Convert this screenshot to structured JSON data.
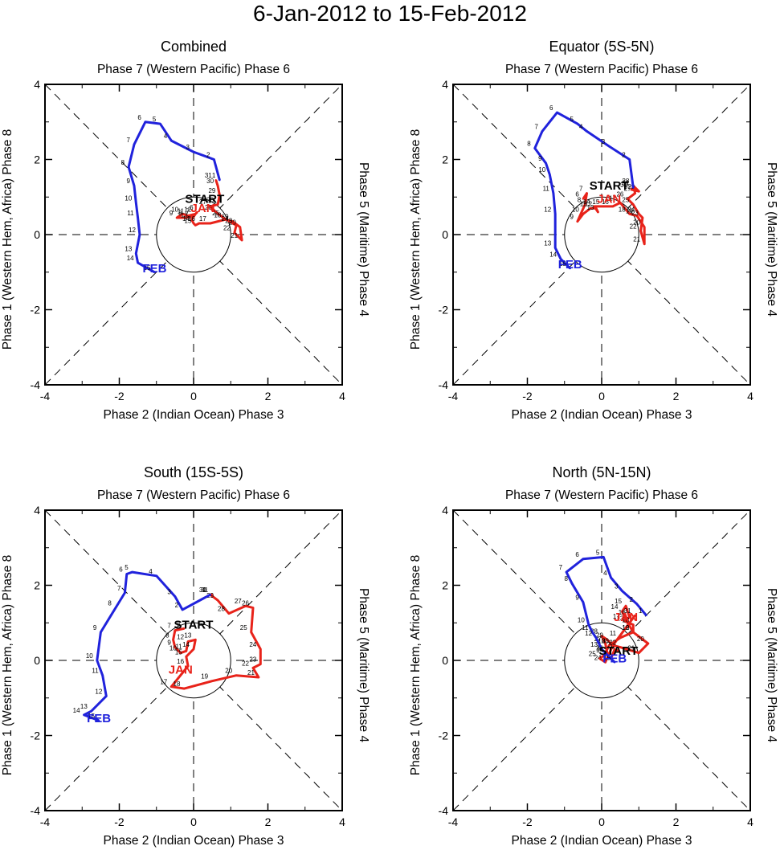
{
  "page": {
    "title": "6-Jan-2012 to 15-Feb-2012"
  },
  "colors": {
    "jan": "#e8231a",
    "feb": "#2022dc",
    "axis": "#000000"
  },
  "chart_data": [
    {
      "type": "line",
      "title": "Combined",
      "label_top": "Phase 7 (Western Pacific) Phase 6",
      "label_bottom": "Phase 2 (Indian Ocean) Phase 3",
      "label_left": "Phase 1 (Western Hem, Africa) Phase 8",
      "label_right": "Phase 5 (Maritime) Phase 4",
      "xlim": [
        -4,
        4
      ],
      "ylim": [
        -4,
        4
      ],
      "ticks": [
        "-4",
        "-2",
        "0",
        "2",
        "4"
      ],
      "start_label": "START",
      "start_at": [
        0.3,
        0.85
      ],
      "month_labels": [
        {
          "text": "JAN",
          "color": "jan",
          "x": 0.25,
          "y": 0.6
        },
        {
          "text": "FEB",
          "color": "feb",
          "x": -1.05,
          "y": -1.0
        }
      ],
      "series": [
        {
          "name": "JAN",
          "color": "jan",
          "days": [
            6,
            7,
            8,
            9,
            10,
            11,
            12,
            13,
            14,
            15,
            16,
            17,
            18,
            19,
            20,
            21,
            22,
            23,
            24,
            25,
            26,
            27,
            28,
            29,
            30,
            31
          ],
          "points": [
            [
              0.1,
              0.6
            ],
            [
              0.0,
              0.5
            ],
            [
              -0.2,
              0.45
            ],
            [
              -0.45,
              0.45
            ],
            [
              -0.3,
              0.55
            ],
            [
              -0.15,
              0.5
            ],
            [
              0.05,
              0.55
            ],
            [
              -0.05,
              0.4
            ],
            [
              0.0,
              0.3
            ],
            [
              0.05,
              0.25
            ],
            [
              0.15,
              0.3
            ],
            [
              0.45,
              0.3
            ],
            [
              0.85,
              0.4
            ],
            [
              1.05,
              0.35
            ],
            [
              1.25,
              0.2
            ],
            [
              1.3,
              -0.15
            ],
            [
              1.1,
              0.05
            ],
            [
              1.15,
              0.25
            ],
            [
              1.05,
              0.3
            ],
            [
              0.8,
              0.45
            ],
            [
              0.6,
              0.6
            ],
            [
              0.45,
              0.75
            ],
            [
              0.65,
              0.8
            ],
            [
              0.7,
              1.05
            ],
            [
              0.65,
              1.3
            ],
            [
              0.6,
              1.45
            ]
          ]
        },
        {
          "name": "FEB",
          "color": "feb",
          "days": [
            1,
            2,
            3,
            4,
            5,
            6,
            7,
            8,
            9,
            10,
            11,
            12,
            13,
            14,
            15
          ],
          "points": [
            [
              0.7,
              1.45
            ],
            [
              0.55,
              2.0
            ],
            [
              0.0,
              2.2
            ],
            [
              -0.6,
              2.5
            ],
            [
              -0.9,
              2.95
            ],
            [
              -1.3,
              3.0
            ],
            [
              -1.6,
              2.4
            ],
            [
              -1.75,
              1.8
            ],
            [
              -1.6,
              1.3
            ],
            [
              -1.55,
              0.85
            ],
            [
              -1.5,
              0.45
            ],
            [
              -1.45,
              0.0
            ],
            [
              -1.55,
              -0.5
            ],
            [
              -1.5,
              -0.75
            ],
            [
              -1.05,
              -1.0
            ]
          ]
        }
      ]
    },
    {
      "type": "line",
      "title": "Equator (5S-5N)",
      "label_top": "Phase 7 (Western Pacific) Phase 6",
      "label_bottom": "Phase 2 (Indian Ocean) Phase 3",
      "label_left": "Phase 1 (Western Hem, Africa) Phase 8",
      "label_right": "Phase 5 (Maritime) Phase 4",
      "xlim": [
        -4,
        4
      ],
      "ylim": [
        -4,
        4
      ],
      "ticks": [
        "-4",
        "-2",
        "0",
        "2",
        "4"
      ],
      "start_label": "START",
      "start_at": [
        0.2,
        1.2
      ],
      "month_labels": [
        {
          "text": "JAN",
          "color": "jan",
          "x": 0.2,
          "y": 0.85
        },
        {
          "text": "FEB",
          "color": "feb",
          "x": -0.85,
          "y": -0.9
        }
      ],
      "series": [
        {
          "name": "JAN",
          "color": "jan",
          "days": [
            6,
            7,
            8,
            9,
            10,
            11,
            12,
            13,
            14,
            15,
            16,
            17,
            18,
            19,
            20,
            21,
            22,
            23,
            24,
            25,
            26,
            27,
            28,
            29,
            30,
            31
          ],
          "points": [
            [
              -0.5,
              0.95
            ],
            [
              -0.4,
              1.1
            ],
            [
              -0.45,
              0.8
            ],
            [
              -0.65,
              0.35
            ],
            [
              -0.5,
              0.55
            ],
            [
              -0.3,
              0.7
            ],
            [
              -0.15,
              0.7
            ],
            [
              -0.1,
              0.6
            ],
            [
              -0.2,
              0.75
            ],
            [
              0.05,
              0.75
            ],
            [
              0.3,
              0.75
            ],
            [
              0.5,
              0.85
            ],
            [
              0.75,
              0.55
            ],
            [
              0.95,
              0.5
            ],
            [
              1.15,
              0.2
            ],
            [
              1.15,
              -0.25
            ],
            [
              1.05,
              0.1
            ],
            [
              1.1,
              0.45
            ],
            [
              1.0,
              0.55
            ],
            [
              0.85,
              0.8
            ],
            [
              0.7,
              0.95
            ],
            [
              0.9,
              1.1
            ],
            [
              0.85,
              1.3
            ],
            [
              1.0,
              1.15
            ],
            [
              0.8,
              1.2
            ],
            [
              0.85,
              1.25
            ]
          ]
        },
        {
          "name": "FEB",
          "color": "feb",
          "days": [
            1,
            2,
            3,
            4,
            5,
            6,
            7,
            8,
            9,
            10,
            11,
            12,
            13,
            14,
            15
          ],
          "points": [
            [
              0.85,
              1.25
            ],
            [
              0.75,
              2.0
            ],
            [
              0.2,
              2.35
            ],
            [
              -0.4,
              2.75
            ],
            [
              -0.65,
              2.95
            ],
            [
              -1.2,
              3.25
            ],
            [
              -1.6,
              2.75
            ],
            [
              -1.8,
              2.3
            ],
            [
              -1.5,
              1.9
            ],
            [
              -1.4,
              1.6
            ],
            [
              -1.3,
              1.1
            ],
            [
              -1.25,
              0.55
            ],
            [
              -1.25,
              -0.35
            ],
            [
              -1.1,
              -0.65
            ],
            [
              -0.85,
              -0.9
            ]
          ]
        }
      ]
    },
    {
      "type": "line",
      "title": "South (15S-5S)",
      "label_top": "Phase 7 (Western Pacific) Phase 6",
      "label_bottom": "Phase 2 (Indian Ocean) Phase 3",
      "label_left": "Phase 1 (Western Hem, Africa) Phase 8",
      "label_right": "Phase 5 (Maritime) Phase 4",
      "xlim": [
        -4,
        4
      ],
      "ylim": [
        -4,
        4
      ],
      "ticks": [
        "-4",
        "-2",
        "0",
        "2",
        "4"
      ],
      "start_label": "START",
      "start_at": [
        0.0,
        0.85
      ],
      "month_labels": [
        {
          "text": "JAN",
          "color": "jan",
          "x": -0.35,
          "y": -0.35
        },
        {
          "text": "FEB",
          "color": "feb",
          "x": -2.55,
          "y": -1.65
        }
      ],
      "series": [
        {
          "name": "JAN",
          "color": "jan",
          "days": [
            6,
            7,
            8,
            9,
            10,
            11,
            12,
            13,
            14,
            15,
            16,
            17,
            18,
            19,
            20,
            21,
            22,
            23,
            24,
            25,
            26,
            27,
            28,
            29,
            30,
            31
          ],
          "points": [
            [
              -0.25,
              0.85
            ],
            [
              -0.5,
              0.8
            ],
            [
              -0.55,
              0.55
            ],
            [
              -0.5,
              0.35
            ],
            [
              -0.35,
              0.2
            ],
            [
              -0.2,
              0.25
            ],
            [
              -0.15,
              0.5
            ],
            [
              0.05,
              0.55
            ],
            [
              0.0,
              0.3
            ],
            [
              -0.2,
              0.1
            ],
            [
              -0.15,
              -0.15
            ],
            [
              -0.6,
              -0.7
            ],
            [
              -0.25,
              -0.75
            ],
            [
              0.5,
              -0.55
            ],
            [
              1.15,
              -0.4
            ],
            [
              1.75,
              -0.45
            ],
            [
              1.6,
              -0.2
            ],
            [
              1.8,
              -0.1
            ],
            [
              1.8,
              0.3
            ],
            [
              1.55,
              0.75
            ],
            [
              1.6,
              1.4
            ],
            [
              1.4,
              1.45
            ],
            [
              0.95,
              1.25
            ],
            [
              0.65,
              1.6
            ],
            [
              0.45,
              1.75
            ],
            [
              0.5,
              1.75
            ]
          ]
        },
        {
          "name": "FEB",
          "color": "feb",
          "days": [
            1,
            2,
            3,
            4,
            5,
            6,
            7,
            8,
            9,
            10,
            11,
            12,
            13,
            14,
            15
          ],
          "points": [
            [
              0.45,
              1.75
            ],
            [
              -0.3,
              1.35
            ],
            [
              -0.5,
              1.7
            ],
            [
              -1.0,
              2.25
            ],
            [
              -1.65,
              2.35
            ],
            [
              -1.8,
              2.3
            ],
            [
              -1.85,
              1.8
            ],
            [
              -2.1,
              1.4
            ],
            [
              -2.5,
              0.75
            ],
            [
              -2.6,
              0.0
            ],
            [
              -2.45,
              -0.4
            ],
            [
              -2.35,
              -0.95
            ],
            [
              -2.75,
              -1.35
            ],
            [
              -2.95,
              -1.45
            ],
            [
              -2.55,
              -1.6
            ]
          ]
        }
      ]
    },
    {
      "type": "line",
      "title": "North (5N-15N)",
      "label_top": "Phase 7 (Western Pacific) Phase 6",
      "label_bottom": "Phase 2 (Indian Ocean) Phase 3",
      "label_left": "Phase 1 (Western Hem, Africa) Phase 8",
      "label_right": "Phase 5 (Maritime) Phase 4",
      "xlim": [
        -4,
        4
      ],
      "ylim": [
        -4,
        4
      ],
      "ticks": [
        "-4",
        "-2",
        "0",
        "2",
        "4"
      ],
      "start_label": "START",
      "start_at": [
        0.45,
        0.15
      ],
      "month_labels": [
        {
          "text": "JAN",
          "color": "jan",
          "x": 0.65,
          "y": 1.05
        },
        {
          "text": "FEB",
          "color": "feb",
          "x": 0.35,
          "y": -0.05
        }
      ],
      "series": [
        {
          "name": "JAN",
          "color": "jan",
          "days": [
            6,
            7,
            8,
            9,
            10,
            11,
            12,
            13,
            14,
            15,
            16,
            17,
            18,
            19,
            20,
            21,
            22,
            23,
            24,
            25,
            26,
            27,
            28,
            29,
            30,
            31
          ],
          "points": [
            [
              0.45,
              0.25
            ],
            [
              0.35,
              0.3
            ],
            [
              0.25,
              0.05
            ],
            [
              0.1,
              0.2
            ],
            [
              0.2,
              0.4
            ],
            [
              0.5,
              0.6
            ],
            [
              0.85,
              0.75
            ],
            [
              0.7,
              1.0
            ],
            [
              0.55,
              1.3
            ],
            [
              0.65,
              1.45
            ],
            [
              0.75,
              1.15
            ],
            [
              0.6,
              1.05
            ],
            [
              0.85,
              0.95
            ],
            [
              0.85,
              0.75
            ],
            [
              1.25,
              0.45
            ],
            [
              1.0,
              0.2
            ],
            [
              0.5,
              0.35
            ],
            [
              0.3,
              0.4
            ],
            [
              0.1,
              -0.05
            ],
            [
              -0.05,
              0.05
            ],
            [
              0.15,
              0.2
            ],
            [
              0.1,
              0.45
            ],
            [
              0.0,
              0.65
            ],
            [
              0.15,
              0.55
            ],
            [
              0.3,
              0.4
            ],
            [
              0.9,
              1.2
            ]
          ]
        },
        {
          "name": "FEB",
          "color": "feb",
          "days": [
            1,
            2,
            3,
            4,
            5,
            6,
            7,
            8,
            9,
            10,
            11,
            12,
            13,
            14,
            15
          ],
          "points": [
            [
              1.2,
              1.2
            ],
            [
              0.95,
              1.5
            ],
            [
              0.55,
              1.85
            ],
            [
              0.25,
              2.2
            ],
            [
              0.05,
              2.75
            ],
            [
              -0.5,
              2.7
            ],
            [
              -0.95,
              2.35
            ],
            [
              -0.8,
              2.05
            ],
            [
              -0.5,
              1.55
            ],
            [
              -0.35,
              0.95
            ],
            [
              -0.25,
              0.75
            ],
            [
              -0.15,
              0.6
            ],
            [
              0.0,
              0.3
            ],
            [
              0.15,
              0.15
            ],
            [
              0.35,
              -0.05
            ]
          ]
        }
      ]
    }
  ]
}
